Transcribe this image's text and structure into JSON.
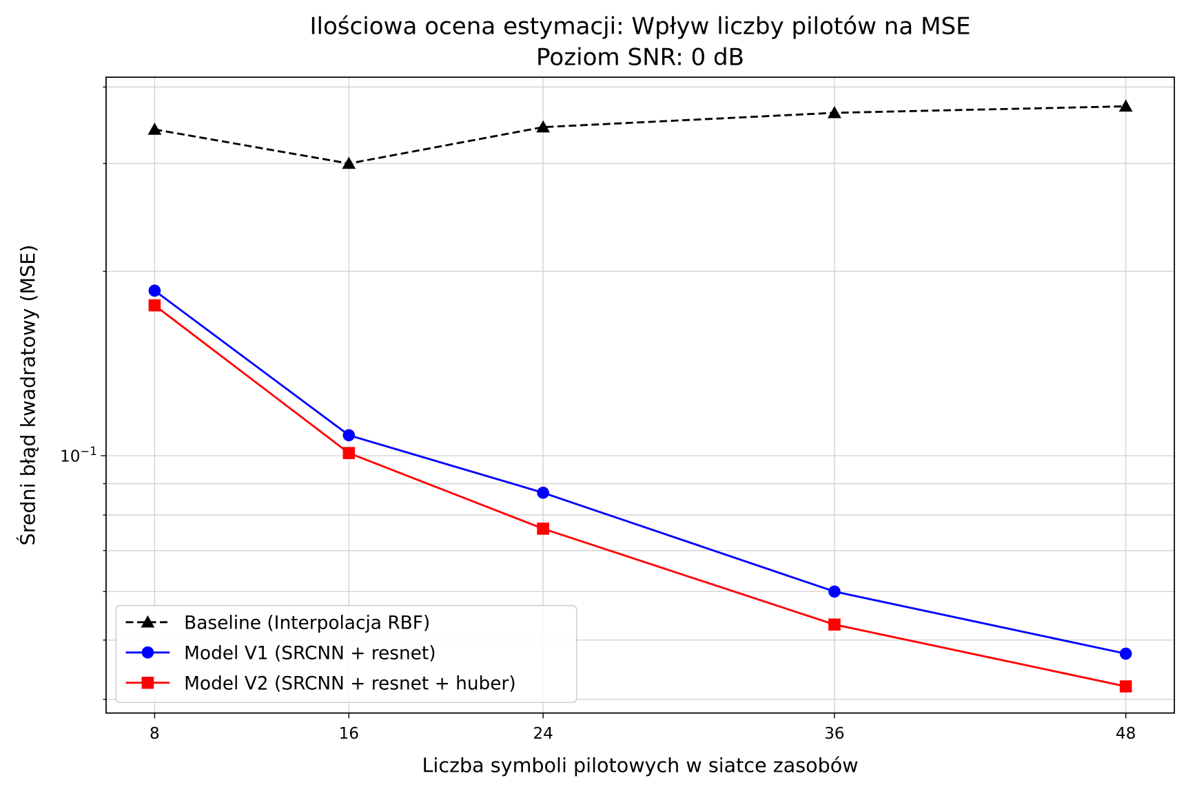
{
  "chart_data": {
    "type": "line",
    "title": "Ilościowa ocena estymacji: Wpływ liczby pilotów na MSE",
    "subtitle": "Poziom SNR: 0 dB",
    "xlabel": "Liczba symboli pilotowych w siatce zasobów",
    "ylabel": "Średni błąd kwadratowy (MSE)",
    "x": [
      8,
      16,
      24,
      36,
      48
    ],
    "xticks": [
      "8",
      "16",
      "24",
      "36",
      "48"
    ],
    "xlim": [
      6,
      50
    ],
    "yscale": "log",
    "ylim": [
      0.038,
      0.415
    ],
    "yticks_major": [
      {
        "value": 0.1,
        "base": "10",
        "exp": "−1"
      }
    ],
    "yticks_minor": [
      0.04,
      0.05,
      0.06,
      0.07,
      0.08,
      0.09,
      0.2,
      0.3,
      0.4
    ],
    "grid": true,
    "legend_position": "lower-left",
    "series": [
      {
        "name": "Baseline (Interpolacja RBF)",
        "color": "#000000",
        "dash": "dashed",
        "marker": "triangle",
        "values": [
          0.341,
          0.3,
          0.344,
          0.363,
          0.372
        ]
      },
      {
        "name": "Model V1 (SRCNN + resnet)",
        "color": "#0000ff",
        "dash": "solid",
        "marker": "circle",
        "values": [
          0.186,
          0.108,
          0.087,
          0.06,
          0.0475
        ]
      },
      {
        "name": "Model V2 (SRCNN + resnet + huber)",
        "color": "#ff0000",
        "dash": "solid",
        "marker": "square",
        "values": [
          0.176,
          0.101,
          0.076,
          0.053,
          0.042
        ]
      }
    ]
  }
}
